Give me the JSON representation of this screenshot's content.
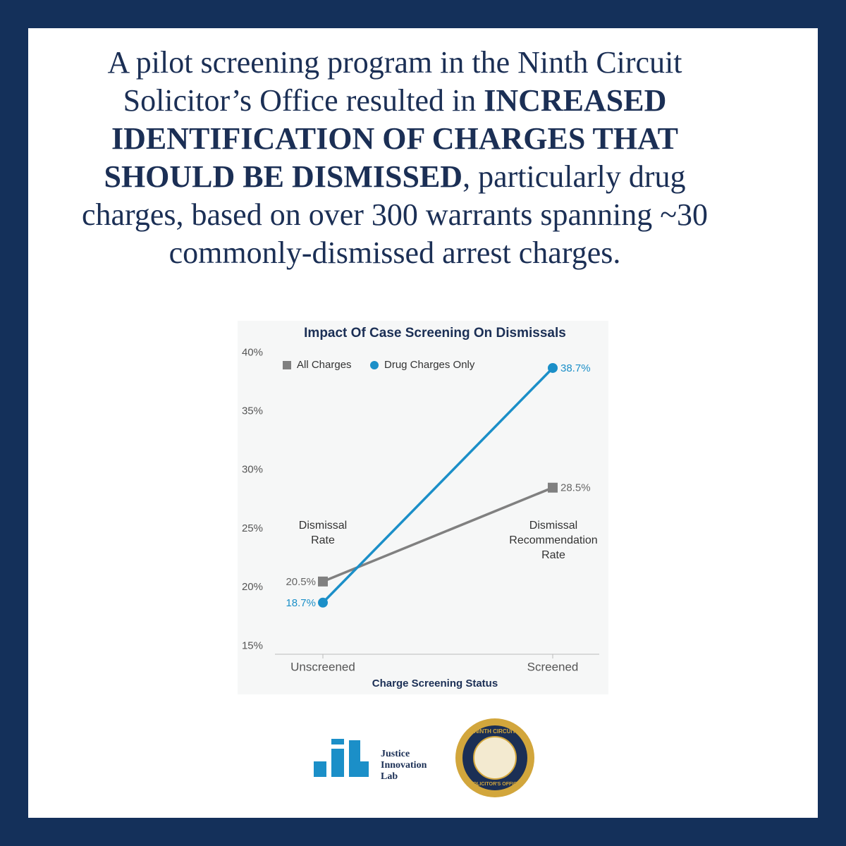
{
  "headline": {
    "segments": [
      {
        "text": "A pilot screening program in the Ninth Circuit Solicitor’s Office resulted in ",
        "bold": false
      },
      {
        "text": "INCREASED IDENTIFICATION OF CHARGES THAT SHOULD BE DISMISSED",
        "bold": true
      },
      {
        "text": ", particularly drug charges, based on over 300 warrants spanning ~30 commonly-dismissed arrest charges.",
        "bold": false
      }
    ]
  },
  "chart_data": {
    "type": "line",
    "title": "Impact Of Case Screening On Dismissals",
    "x_label": "Charge Screening Status",
    "categories": [
      "Unscreened",
      "Screened"
    ],
    "series": [
      {
        "name": "All Charges",
        "color": "#808080",
        "marker": "square",
        "values": [
          20.5,
          28.5
        ],
        "value_labels": [
          "20.5%",
          "28.5%"
        ]
      },
      {
        "name": "Drug Charges Only",
        "color": "#1b8fc8",
        "marker": "circle",
        "values": [
          18.7,
          38.7
        ],
        "value_labels": [
          "18.7%",
          "38.7%"
        ]
      }
    ],
    "annotations": [
      [
        "Dismissal",
        "Rate"
      ],
      [
        "Dismissal",
        "Recommendation",
        "Rate"
      ]
    ],
    "ylim": [
      14.3,
      42.5
    ],
    "yticks": [
      {
        "value": 15,
        "label": "15%"
      },
      {
        "value": 20,
        "label": "20%"
      },
      {
        "value": 25,
        "label": "25%"
      },
      {
        "value": 30,
        "label": "30%"
      },
      {
        "value": 35,
        "label": "35%"
      },
      {
        "value": 40,
        "label": "40%"
      }
    ]
  },
  "logos": {
    "lab": [
      "Justice",
      "Innovation",
      "Lab"
    ],
    "seal": [
      "NINTH CIRCUIT",
      "SOLICITOR'S OFFICE"
    ]
  }
}
